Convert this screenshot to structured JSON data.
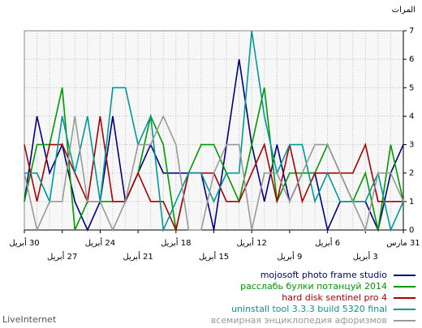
{
  "chart_data": {
    "type": "line",
    "y_label": "المرات",
    "footer": "LiveInternet",
    "categories": [
      "30 أبريل",
      null,
      null,
      "27 أبريل",
      null,
      null,
      "24 أبريل",
      null,
      null,
      "21 أبريل",
      null,
      null,
      "18 أبريل",
      null,
      null,
      "15 أبريل",
      null,
      null,
      "12 أبريل",
      null,
      null,
      "9 أبريل",
      null,
      null,
      "6 أبريل",
      null,
      null,
      "3 أبريل",
      null,
      null,
      "31 مارس"
    ],
    "ylim": [
      0,
      7
    ],
    "yticks": [
      0,
      1,
      2,
      3,
      4,
      5,
      6,
      7
    ],
    "grid": true,
    "series": [
      {
        "name": "mojosoft photo frame studio",
        "color": "#000080",
        "values": [
          1,
          4,
          2,
          3,
          1,
          0,
          1,
          4,
          1,
          2,
          3,
          2,
          2,
          2,
          2,
          0,
          3,
          6,
          3,
          1,
          3,
          1,
          2,
          2,
          0,
          1,
          1,
          1,
          0,
          2,
          3
        ]
      },
      {
        "name": "расслабь булки потанцуй 2014",
        "color": "#009900",
        "values": [
          1,
          3,
          3,
          5,
          0,
          1,
          1,
          1,
          1,
          2,
          4,
          3,
          0,
          2,
          3,
          3,
          2,
          1,
          3,
          5,
          1,
          2,
          2,
          2,
          3,
          2,
          1,
          2,
          0,
          3,
          1
        ]
      },
      {
        "name": "hard disk sentinel pro 4",
        "color": "#aa0000",
        "values": [
          3,
          1,
          3,
          3,
          2,
          1,
          4,
          1,
          1,
          2,
          1,
          1,
          0,
          2,
          2,
          2,
          1,
          1,
          2,
          3,
          1,
          3,
          1,
          2,
          2,
          2,
          2,
          3,
          1,
          1,
          1
        ]
      },
      {
        "name": "uninstall tool 3.3.3 build 5320 final",
        "color": "#009999",
        "values": [
          2,
          2,
          1,
          4,
          2,
          4,
          1,
          5,
          5,
          3,
          4,
          0,
          1,
          2,
          2,
          1,
          2,
          2,
          7,
          4,
          2,
          3,
          3,
          1,
          2,
          1,
          1,
          1,
          2,
          0,
          1
        ]
      },
      {
        "name": "всемирная энциклопедия афоризмов",
        "color": "#999999",
        "values": [
          2,
          0,
          1,
          1,
          4,
          1,
          1,
          0,
          1,
          3,
          3,
          4,
          3,
          0,
          0,
          2,
          3,
          3,
          0,
          2,
          2,
          1,
          2,
          3,
          3,
          2,
          1,
          0,
          2,
          2,
          1
        ]
      }
    ]
  }
}
